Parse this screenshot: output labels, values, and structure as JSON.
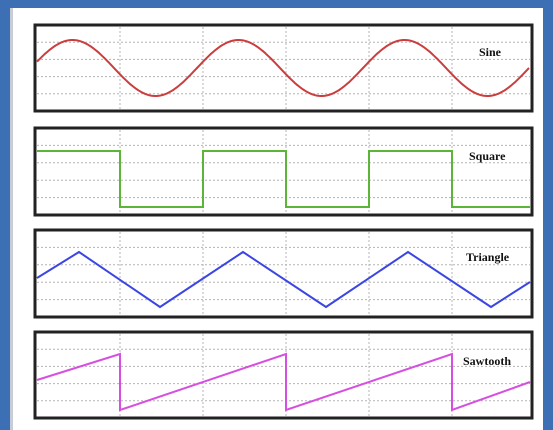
{
  "waveforms": [
    {
      "name": "sine",
      "label": "Sine",
      "color": "#cc3d3d",
      "icon": "sine-wave"
    },
    {
      "name": "square",
      "label": "Square",
      "color": "#5bb536",
      "icon": "square-wave"
    },
    {
      "name": "triangle",
      "label": "Triangle",
      "color": "#3b46e3",
      "icon": "triangle-wave"
    },
    {
      "name": "sawtooth",
      "label": "Sawtooth",
      "color": "#d64fe0",
      "icon": "sawtooth-wave"
    }
  ]
}
